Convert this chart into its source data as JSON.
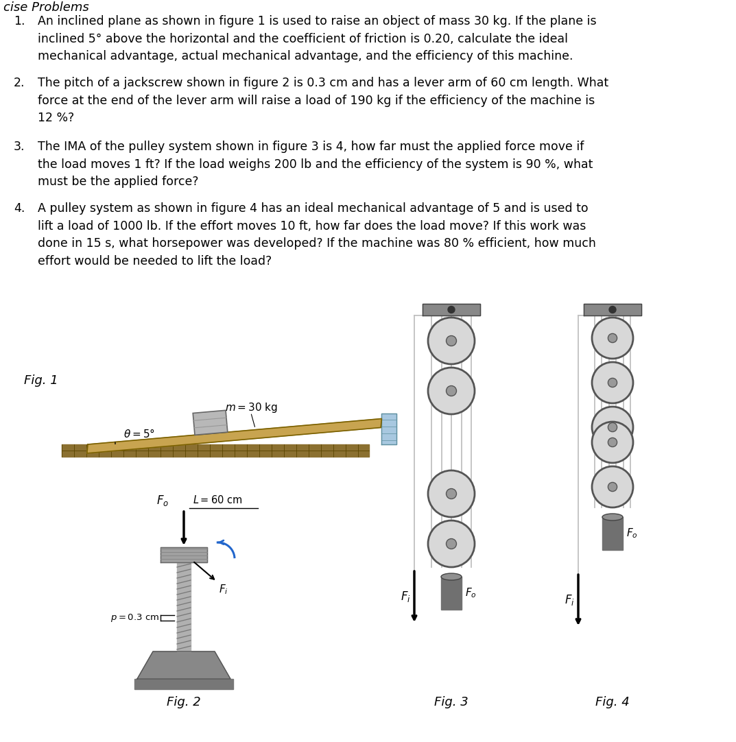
{
  "background": "#ffffff",
  "text_color": "#000000",
  "body_fontsize": 12.5,
  "fig_label_fontsize": 13,
  "title_text": "cise Problems",
  "p1": "An inclined plane as shown in figure 1 is used to raise an object of mass 30 kg. If the plane is\ninclined 5° above the horizontal and the coefficient of friction is 0.20, calculate the ideal\nmechanical advantage, actual mechanical advantage, and the efficiency of this machine.",
  "p2": "The pitch of a jackscrew shown in figure 2 is 0.3 cm and has a lever arm of 60 cm length. What\nforce at the end of the lever arm will raise a load of 190 kg if the efficiency of the machine is\n12 %?",
  "p3": "The IMA of the pulley system shown in figure 3 is 4, how far must the applied force move if\nthe load moves 1 ft? If the load weighs 200 lb and the efficiency of the system is 90 %, what\nmust be the applied force?",
  "p4": "A pulley system as shown in figure 4 has an ideal mechanical advantage of 5 and is used to\nlift a load of 1000 lb. If the effort moves 10 ft, how far does the load move? If this work was\ndone in 15 s, what horsepower was developed? If the machine was 80 % efficient, how much\neffort would be needed to lift the load?",
  "plane_color": "#C8A450",
  "plane_edge": "#7A6000",
  "wall_color": "#A8C8E0",
  "wall_edge": "#6090A0",
  "ground_color": "#8B7030",
  "ground_line_color": "#5A4500",
  "box_color": "#B8B8B8",
  "shaft_color": "#AAAAAA",
  "base_color": "#888888",
  "base_dark": "#555555",
  "pulley_face": "#D8D8D8",
  "pulley_edge": "#555555",
  "load_color": "#707070",
  "load_top_color": "#909090",
  "rope_color": "#AAAAAA",
  "arrow_color": "#000000",
  "curve_arrow_color": "#2266CC"
}
